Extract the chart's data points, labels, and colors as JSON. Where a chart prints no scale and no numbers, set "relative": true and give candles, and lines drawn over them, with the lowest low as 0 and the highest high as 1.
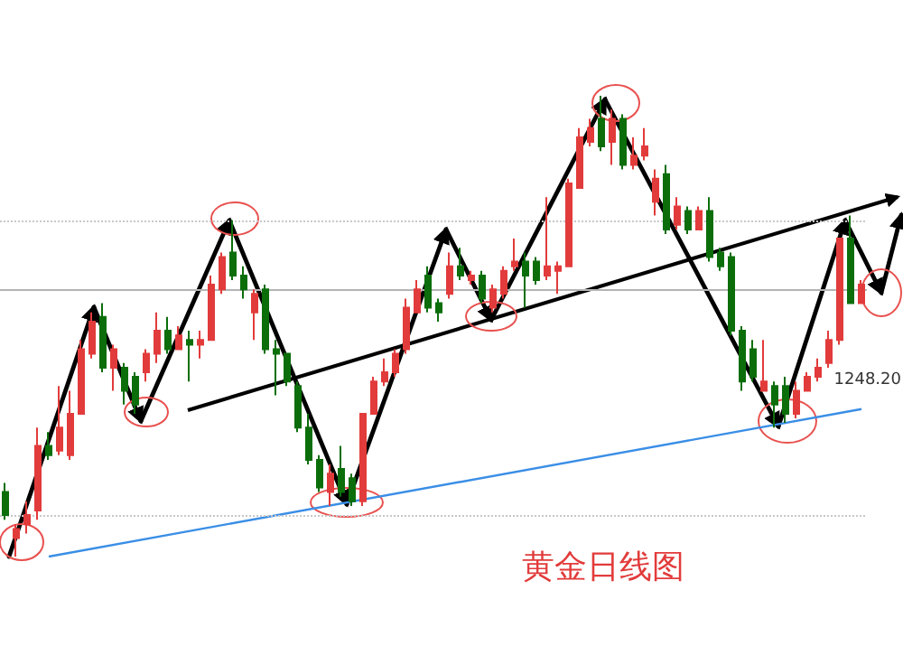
{
  "chart_data": {
    "type": "candlestick",
    "title": "黄金日线图",
    "relative": true,
    "categories": [
      null,
      null,
      null,
      null,
      null,
      null,
      null,
      null,
      null,
      null,
      null,
      null,
      null,
      null,
      null,
      null,
      null,
      null,
      null,
      null,
      null,
      null,
      null,
      null,
      null,
      null,
      null,
      null,
      null,
      null,
      null,
      null,
      null,
      null,
      null,
      null,
      null,
      null,
      null,
      null,
      null,
      null,
      null,
      null,
      null,
      null,
      null,
      null,
      null,
      null,
      null,
      null,
      null,
      null,
      null,
      null,
      null,
      null,
      null,
      null,
      null,
      null,
      null,
      null,
      null,
      null,
      null,
      null,
      null,
      null,
      null,
      null,
      null,
      null,
      null,
      null,
      null,
      null,
      null,
      null
    ],
    "ohlc": [
      [
        0.14,
        0.16,
        0.08,
        0.09
      ],
      [
        0.04,
        0.07,
        0,
        0.06
      ],
      [
        0.07,
        0.12,
        0.05,
        0.09
      ],
      [
        0.1,
        0.28,
        0.08,
        0.24
      ],
      [
        0.24,
        0.27,
        0.21,
        0.22
      ],
      [
        0.23,
        0.37,
        0.22,
        0.28
      ],
      [
        0.22,
        0.36,
        0.21,
        0.31
      ],
      [
        0.31,
        0.47,
        0.31,
        0.45
      ],
      [
        0.44,
        0.53,
        0.43,
        0.51
      ],
      [
        0.52,
        0.55,
        0.4,
        0.41
      ],
      [
        0.41,
        0.46,
        0.36,
        0.45
      ],
      [
        0.41,
        0.42,
        0.33,
        0.36
      ],
      [
        0.39,
        0.4,
        0.31,
        0.33
      ],
      [
        0.4,
        0.45,
        0.38,
        0.44
      ],
      [
        0.44,
        0.53,
        0.42,
        0.49
      ],
      [
        0.49,
        0.52,
        0.44,
        0.45
      ],
      [
        0.45,
        0.5,
        0.45,
        0.48
      ],
      [
        0.47,
        0.49,
        0.38,
        0.46
      ],
      [
        0.46,
        0.49,
        0.43,
        0.47
      ],
      [
        0.47,
        0.61,
        0.47,
        0.59
      ],
      [
        0.58,
        0.66,
        0.57,
        0.65
      ],
      [
        0.66,
        0.73,
        0.6,
        0.61
      ],
      [
        0.61,
        0.63,
        0.56,
        0.58
      ],
      [
        0.53,
        0.58,
        0.47,
        0.57
      ],
      [
        0.58,
        0.59,
        0.44,
        0.45
      ],
      [
        0.45,
        0.47,
        0.35,
        0.44
      ],
      [
        0.44,
        0.44,
        0.37,
        0.38
      ],
      [
        0.37,
        0.38,
        0.27,
        0.28
      ],
      [
        0.28,
        0.31,
        0.2,
        0.21
      ],
      [
        0.21,
        0.22,
        0.14,
        0.15
      ],
      [
        0.14,
        0.2,
        0.11,
        0.18
      ],
      [
        0.19,
        0.24,
        0.13,
        0.14
      ],
      [
        0.17,
        0.18,
        0.11,
        0.12
      ],
      [
        0.12,
        0.31,
        0.11,
        0.31
      ],
      [
        0.31,
        0.39,
        0.31,
        0.38
      ],
      [
        0.38,
        0.43,
        0.37,
        0.4
      ],
      [
        0.4,
        0.45,
        0.39,
        0.44
      ],
      [
        0.45,
        0.56,
        0.44,
        0.54
      ],
      [
        0.53,
        0.6,
        0.53,
        0.58
      ],
      [
        0.61,
        0.63,
        0.53,
        0.54
      ],
      [
        0.55,
        0.56,
        0.51,
        0.53
      ],
      [
        0.57,
        0.66,
        0.56,
        0.63
      ],
      [
        0.63,
        0.67,
        0.6,
        0.61
      ],
      [
        0.6,
        0.62,
        0.59,
        0.61
      ],
      [
        0.61,
        0.62,
        0.55,
        0.56
      ],
      [
        0.54,
        0.59,
        0.53,
        0.58
      ],
      [
        0.57,
        0.63,
        0.56,
        0.62
      ],
      [
        0.63,
        0.69,
        0.62,
        0.64
      ],
      [
        0.64,
        0.66,
        0.54,
        0.61
      ],
      [
        0.64,
        0.65,
        0.59,
        0.6
      ],
      [
        0.61,
        0.78,
        0.6,
        0.63
      ],
      [
        0.62,
        0.64,
        0.57,
        0.63
      ],
      [
        0.63,
        0.82,
        0.63,
        0.81
      ],
      [
        0.8,
        0.93,
        0.8,
        0.91
      ],
      [
        0.9,
        0.95,
        0.89,
        0.93
      ],
      [
        0.95,
        1,
        0.88,
        0.89
      ],
      [
        0.9,
        0.97,
        0.85,
        0.95
      ],
      [
        0.95,
        0.96,
        0.84,
        0.85
      ],
      [
        0.85,
        0.91,
        0.84,
        0.87
      ],
      [
        0.87,
        0.93,
        0.86,
        0.89
      ],
      [
        0.77,
        0.84,
        0.74,
        0.82
      ],
      [
        0.83,
        0.85,
        0.7,
        0.71
      ],
      [
        0.72,
        0.78,
        0.71,
        0.76
      ],
      [
        0.75,
        0.76,
        0.7,
        0.71
      ],
      [
        0.71,
        0.76,
        0.71,
        0.75
      ],
      [
        0.75,
        0.78,
        0.64,
        0.65
      ],
      [
        0.66,
        0.67,
        0.62,
        0.63
      ],
      [
        0.65,
        0.66,
        0.48,
        0.49
      ],
      [
        0.49,
        0.5,
        0.36,
        0.38
      ],
      [
        0.45,
        0.47,
        0.38,
        0.39
      ],
      [
        0.36,
        0.47,
        0.36,
        0.38
      ],
      [
        0.37,
        0.38,
        0.28,
        0.33
      ],
      [
        0.37,
        0.39,
        0.29,
        0.31
      ],
      [
        0.31,
        0.38,
        0.3,
        0.36
      ],
      [
        0.36,
        0.4,
        0.36,
        0.39
      ],
      [
        0.39,
        0.43,
        0.38,
        0.41
      ],
      [
        0.42,
        0.49,
        0.41,
        0.47
      ],
      [
        0.47,
        0.69,
        0.46,
        0.69
      ],
      [
        0.69,
        0.74,
        0.55,
        0.55
      ],
      [
        0.55,
        0.6,
        0.55,
        0.59
      ]
    ],
    "annotations": [
      "1248.20"
    ],
    "series": [
      {
        "type": "line",
        "color": "#3a8ee6",
        "values": [
          null,
          null,
          null,
          null,
          0.0,
          null,
          null,
          null,
          null,
          null,
          null,
          null,
          null,
          null,
          null,
          null,
          null,
          null,
          null,
          null,
          null,
          null,
          null,
          null,
          null,
          null,
          null,
          null,
          null,
          null,
          null,
          null,
          null,
          null,
          null,
          null,
          null,
          null,
          null,
          null,
          null,
          null,
          null,
          null,
          null,
          null,
          null,
          null,
          null,
          null,
          null,
          null,
          null,
          null,
          null,
          null,
          null,
          null,
          null,
          null,
          null,
          null,
          null,
          null,
          null,
          null,
          null,
          null,
          null,
          null,
          null,
          null,
          null,
          null,
          null,
          null,
          null,
          null,
          null,
          0.32
        ]
      }
    ],
    "ref_lines": [
      {
        "axis": "y",
        "value": 0.58,
        "color": "#b4b4b4",
        "line_style": "solid"
      },
      {
        "axis": "y",
        "value": 0.73,
        "color": "#c8c8c8",
        "line_style": "dotted"
      },
      {
        "axis": "y",
        "value": 0.09,
        "color": "#c8c8c8",
        "line_style": "dotted"
      }
    ]
  }
}
